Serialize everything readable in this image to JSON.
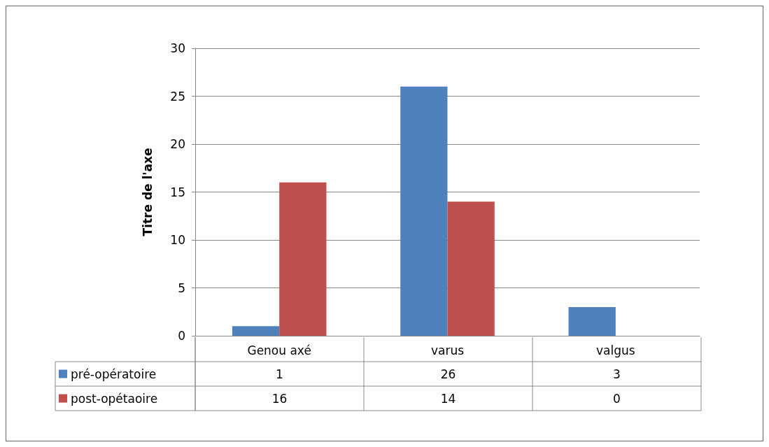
{
  "chart_data": {
    "type": "bar",
    "ylabel": "Titre de l'axe",
    "categories": [
      "Genou axé",
      "varus",
      "valgus"
    ],
    "series": [
      {
        "name": "pré-opératoire",
        "color": "#4f81bd",
        "values": [
          1,
          26,
          3
        ]
      },
      {
        "name": "post-opétaoire",
        "color": "#c0504d",
        "values": [
          16,
          14,
          0
        ]
      }
    ],
    "ylim": [
      0,
      30
    ],
    "yticks": [
      0,
      5,
      10,
      15,
      20,
      25,
      30
    ],
    "grid": "y",
    "legend": "bottom",
    "data_labels": true
  }
}
